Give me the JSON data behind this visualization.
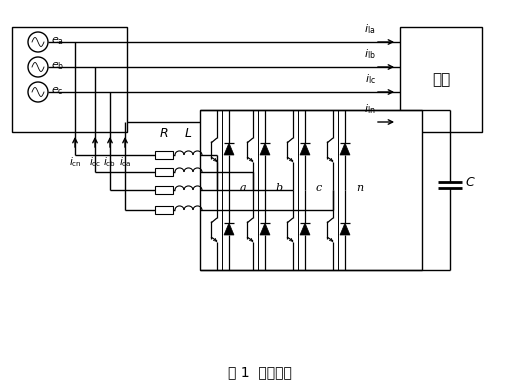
{
  "title": "图 1  主电路图",
  "bg_color": "#ffffff",
  "line_color": "#000000",
  "fig_width": 5.2,
  "fig_height": 3.9,
  "dpi": 100,
  "src_labels": [
    "$e_{\\rm a}$",
    "$e_{\\rm b}$",
    "$e_{\\rm c}$"
  ],
  "curr_labels_top": [
    "$i_{\\rm la}$",
    "$i_{\\rm lb}$",
    "$i_{\\rm lc}$",
    "$i_{\\rm ln}$"
  ],
  "curr_labels_bot": [
    "$i_{\\rm cn}$",
    "$i_{\\rm cc}$",
    "$i_{\\rm cb}$",
    "$i_{\\rm ca}$"
  ],
  "leg_labels": [
    "a",
    "b",
    "c",
    "n"
  ],
  "load_text": "负载",
  "cap_label": "$C$",
  "R_label": "$R$",
  "L_label": "$L$"
}
